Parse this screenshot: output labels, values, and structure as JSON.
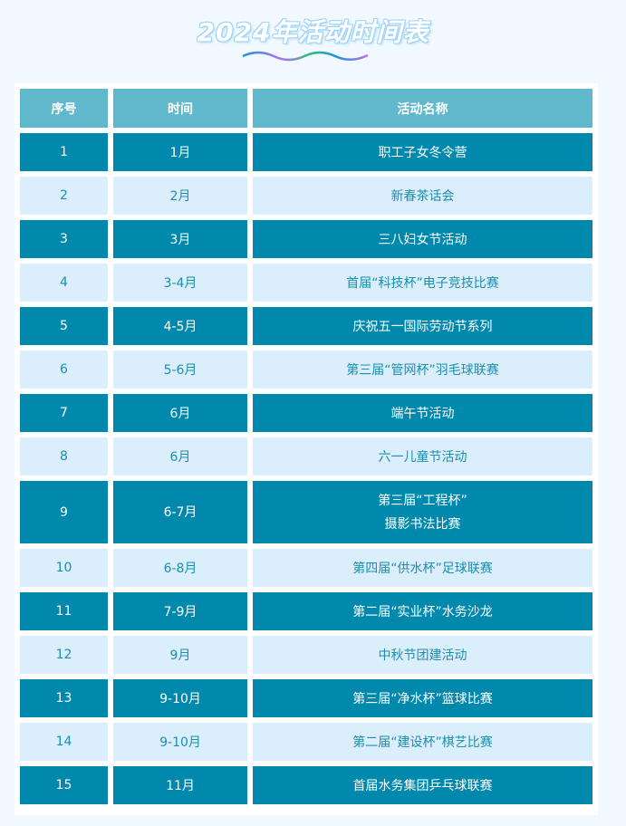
{
  "title": "2024年活动时间表",
  "columns": [
    "序号",
    "时间",
    "活动名称"
  ],
  "rows": [
    {
      "no": "1",
      "time": "1月",
      "name": "职工子女冬令营"
    },
    {
      "no": "2",
      "time": "2月",
      "name": "新春茶话会"
    },
    {
      "no": "3",
      "time": "3月",
      "name": "三八妇女节活动"
    },
    {
      "no": "4",
      "time": "3-4月",
      "name": "首届“科技杯”电子竞技比赛"
    },
    {
      "no": "5",
      "time": "4-5月",
      "name": "庆祝五一国际劳动节系列"
    },
    {
      "no": "6",
      "time": "5-6月",
      "name": "第三届“管网杯”羽毛球联赛"
    },
    {
      "no": "7",
      "time": "6月",
      "name": "端午节活动"
    },
    {
      "no": "8",
      "time": "6月",
      "name": "六一儿童节活动"
    },
    {
      "no": "9",
      "time": "6-7月",
      "name": "第三届“工程杯”",
      "name2": "摄影书法比赛"
    },
    {
      "no": "10",
      "time": "6-8月",
      "name": "第四届“供水杯”足球联赛"
    },
    {
      "no": "11",
      "time": "7-9月",
      "name": "第二届“实业杯”水务沙龙"
    },
    {
      "no": "12",
      "time": "9月",
      "name": "中秋节团建活动"
    },
    {
      "no": "13",
      "time": "9-10月",
      "name": "第三届“净水杯”篮球比赛"
    },
    {
      "no": "14",
      "time": "9-10月",
      "name": "第二届“建设杯”棋艺比赛"
    },
    {
      "no": "15",
      "time": "11月",
      "name": "首届水务集团乒乓球联赛"
    }
  ],
  "colors": {
    "header": "#5fb8cc",
    "dark_row": "#0089ad",
    "light_row": "#daeefc",
    "light_text": "#1a8fb0"
  }
}
